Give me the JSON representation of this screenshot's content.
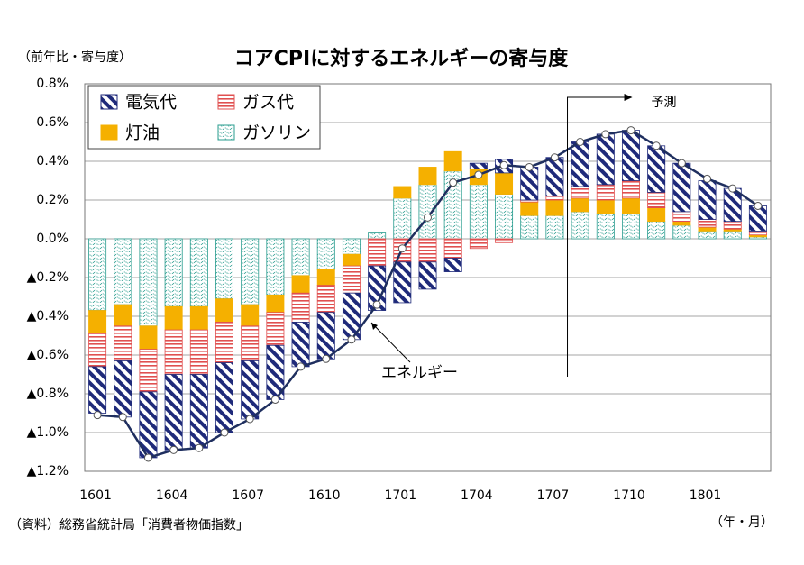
{
  "chart_data": {
    "type": "bar",
    "title": "コアCPIに対するエネルギーの寄与度",
    "y_axis_label": "（前年比・寄与度）",
    "x_axis_label": "（年・月）",
    "source": "（資料）総務省統計局「消費者物価指数」",
    "annotation": "予測",
    "stacked": true,
    "categories": [
      "1601",
      null,
      null,
      "1604",
      null,
      null,
      "1607",
      null,
      null,
      "1610",
      null,
      null,
      "1701",
      null,
      null,
      "1704",
      null,
      null,
      "1707",
      null,
      null,
      "1710",
      null,
      null,
      "1801",
      null,
      null
    ],
    "series": [
      {
        "name": "ガソリン",
        "color": "#2a9d8f",
        "values": [
          -0.37,
          -0.34,
          -0.45,
          -0.35,
          -0.35,
          -0.31,
          -0.34,
          -0.29,
          -0.19,
          -0.16,
          -0.08,
          0.03,
          0.21,
          0.28,
          0.35,
          0.28,
          0.23,
          0.12,
          0.12,
          0.14,
          0.13,
          0.13,
          0.09,
          0.07,
          0.04,
          0.04,
          0.01
        ]
      },
      {
        "name": "灯油",
        "color": "#f5b000",
        "values": [
          -0.12,
          -0.11,
          -0.12,
          -0.12,
          -0.12,
          -0.12,
          -0.11,
          -0.09,
          -0.09,
          -0.08,
          -0.06,
          0.0,
          0.06,
          0.09,
          0.1,
          0.08,
          0.11,
          0.07,
          0.08,
          0.07,
          0.07,
          0.08,
          0.07,
          0.02,
          0.02,
          0.01,
          0.01
        ]
      },
      {
        "name": "ガス代",
        "color": "#e05050",
        "values": [
          -0.17,
          -0.18,
          -0.22,
          -0.23,
          -0.23,
          -0.21,
          -0.18,
          -0.17,
          -0.15,
          -0.14,
          -0.14,
          -0.14,
          -0.12,
          -0.12,
          -0.1,
          -0.05,
          -0.02,
          0.01,
          0.02,
          0.06,
          0.08,
          0.09,
          0.08,
          0.05,
          0.04,
          0.04,
          0.02
        ]
      },
      {
        "name": "電気代",
        "color": "#1f2a7a",
        "values": [
          -0.24,
          -0.29,
          -0.34,
          -0.39,
          -0.38,
          -0.36,
          -0.3,
          -0.28,
          -0.23,
          -0.24,
          -0.24,
          -0.23,
          -0.21,
          -0.14,
          -0.07,
          0.03,
          0.07,
          0.17,
          0.2,
          0.23,
          0.26,
          0.26,
          0.24,
          0.25,
          0.2,
          0.17,
          0.13
        ]
      }
    ],
    "legend_order": [
      3,
      2,
      1,
      0
    ],
    "line": {
      "name": "エネルギー",
      "color": "#1f2f5f",
      "values": [
        -0.91,
        -0.92,
        -1.13,
        -1.09,
        -1.08,
        -1.0,
        -0.93,
        -0.83,
        -0.66,
        -0.62,
        -0.52,
        -0.34,
        -0.05,
        0.11,
        0.29,
        0.33,
        0.38,
        0.37,
        0.42,
        0.5,
        0.54,
        0.56,
        0.48,
        0.39,
        0.31,
        0.26,
        0.17
      ]
    },
    "ylim": [
      -1.2,
      0.8
    ],
    "yticks": [
      {
        "value": -1.2,
        "label": "▲1.2%"
      },
      {
        "value": -1.0,
        "label": "▲1.0%"
      },
      {
        "value": -0.8,
        "label": "▲0.8%"
      },
      {
        "value": -0.6,
        "label": "▲0.6%"
      },
      {
        "value": -0.4,
        "label": "▲0.4%"
      },
      {
        "value": -0.2,
        "label": "▲0.2%"
      },
      {
        "value": 0.0,
        "label": "0.0%"
      },
      {
        "value": 0.2,
        "label": "0.2%"
      },
      {
        "value": 0.4,
        "label": "0.4%"
      },
      {
        "value": 0.6,
        "label": "0.6%"
      },
      {
        "value": 0.8,
        "label": "0.8%"
      }
    ],
    "grid": true
  }
}
